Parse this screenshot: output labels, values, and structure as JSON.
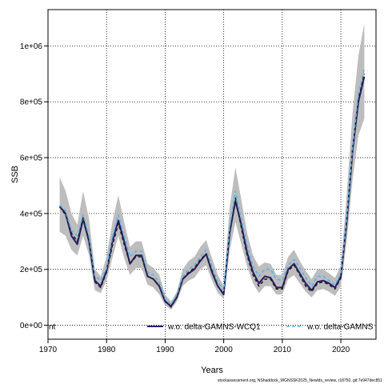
{
  "chart_data": {
    "type": "line",
    "title": "",
    "xlabel": "Years",
    "ylabel": "SSB",
    "xlim": [
      1970,
      2026
    ],
    "ylim": [
      -50000,
      1130000
    ],
    "x_ticks": [
      1970,
      1980,
      1990,
      2000,
      2010,
      2020
    ],
    "y_ticks": [
      0,
      200000,
      400000,
      600000,
      800000,
      1000000
    ],
    "y_tick_labels": [
      "0e+00",
      "2e+05",
      "4e+05",
      "6e+05",
      "8e+05",
      "1e+06"
    ],
    "grid": true,
    "legend": [
      {
        "label": "nt",
        "color": "#000000",
        "style": "none"
      },
      {
        "label": "w.o. delta-GAMNS-WCQ1",
        "color": "#2b1a6b",
        "style": "solid"
      },
      {
        "label": "w.o. delta-GAMNS",
        "color": "#56b4e9",
        "style": "dashed"
      }
    ],
    "legend_position": "bottom",
    "footer": "stockassessment.org, NShaddock_WGNSSK2025_Newlds_review, r18750, git:7e947dec851",
    "x": [
      1972,
      1973,
      1974,
      1975,
      1976,
      1977,
      1978,
      1979,
      1980,
      1981,
      1982,
      1983,
      1984,
      1985,
      1986,
      1987,
      1988,
      1989,
      1990,
      1991,
      1992,
      1993,
      1994,
      1995,
      1996,
      1997,
      1998,
      1999,
      2000,
      2001,
      2002,
      2003,
      2004,
      2005,
      2006,
      2007,
      2008,
      2009,
      2010,
      2011,
      2012,
      2013,
      2014,
      2015,
      2016,
      2017,
      2018,
      2019,
      2020,
      2021,
      2022,
      2023,
      2024
    ],
    "series": [
      {
        "name": "w.o. delta-GAMNS-WCQ1",
        "color": "#2b1a6b",
        "style": "solid",
        "values": [
          425000,
          400000,
          320000,
          290000,
          380000,
          300000,
          160000,
          140000,
          195000,
          300000,
          375000,
          300000,
          220000,
          250000,
          250000,
          175000,
          165000,
          140000,
          85000,
          68000,
          100000,
          165000,
          185000,
          200000,
          230000,
          255000,
          190000,
          140000,
          110000,
          330000,
          445000,
          360000,
          260000,
          190000,
          150000,
          175000,
          170000,
          135000,
          135000,
          200000,
          220000,
          185000,
          150000,
          125000,
          155000,
          160000,
          150000,
          135000,
          175000,
          370000,
          625000,
          800000,
          890000
        ]
      },
      {
        "name": "",
        "color": "#222222",
        "style": "dashed",
        "values": [
          425000,
          395000,
          330000,
          300000,
          385000,
          300000,
          155000,
          135000,
          190000,
          285000,
          365000,
          290000,
          220000,
          245000,
          245000,
          175000,
          165000,
          140000,
          88000,
          65000,
          100000,
          165000,
          190000,
          205000,
          235000,
          255000,
          195000,
          140000,
          112000,
          330000,
          455000,
          350000,
          250000,
          180000,
          140000,
          165000,
          165000,
          130000,
          130000,
          195000,
          215000,
          180000,
          140000,
          120000,
          150000,
          155000,
          145000,
          130000,
          170000,
          375000,
          630000,
          810000,
          900000
        ]
      },
      {
        "name": "w.o. delta-GAMNS",
        "color": "#56b4e9",
        "style": "dashed",
        "values": [
          430000,
          410000,
          340000,
          320000,
          395000,
          320000,
          175000,
          160000,
          205000,
          315000,
          395000,
          320000,
          245000,
          265000,
          265000,
          190000,
          180000,
          155000,
          95000,
          75000,
          110000,
          175000,
          200000,
          215000,
          245000,
          270000,
          210000,
          155000,
          125000,
          350000,
          480000,
          380000,
          285000,
          210000,
          175000,
          200000,
          200000,
          165000,
          160000,
          215000,
          235000,
          205000,
          170000,
          140000,
          175000,
          175000,
          160000,
          145000,
          185000,
          385000,
          640000,
          830000,
          920000
        ]
      }
    ],
    "band": {
      "low": [
        335000,
        320000,
        270000,
        250000,
        320000,
        250000,
        125000,
        115000,
        160000,
        240000,
        320000,
        240000,
        180000,
        205000,
        205000,
        145000,
        135000,
        110000,
        72000,
        55000,
        85000,
        140000,
        160000,
        170000,
        200000,
        215000,
        160000,
        115000,
        95000,
        265000,
        370000,
        290000,
        210000,
        150000,
        115000,
        140000,
        140000,
        110000,
        110000,
        165000,
        180000,
        150000,
        120000,
        100000,
        125000,
        130000,
        120000,
        105000,
        140000,
        300000,
        520000,
        680000,
        740000
      ],
      "high": [
        530000,
        480000,
        400000,
        360000,
        480000,
        380000,
        200000,
        175000,
        245000,
        370000,
        465000,
        370000,
        280000,
        300000,
        300000,
        220000,
        205000,
        180000,
        110000,
        85000,
        120000,
        200000,
        230000,
        245000,
        280000,
        305000,
        240000,
        180000,
        140000,
        420000,
        565000,
        450000,
        330000,
        250000,
        210000,
        225000,
        220000,
        180000,
        180000,
        245000,
        270000,
        230000,
        195000,
        165000,
        200000,
        200000,
        185000,
        170000,
        215000,
        470000,
        760000,
        965000,
        1080000
      ]
    }
  }
}
